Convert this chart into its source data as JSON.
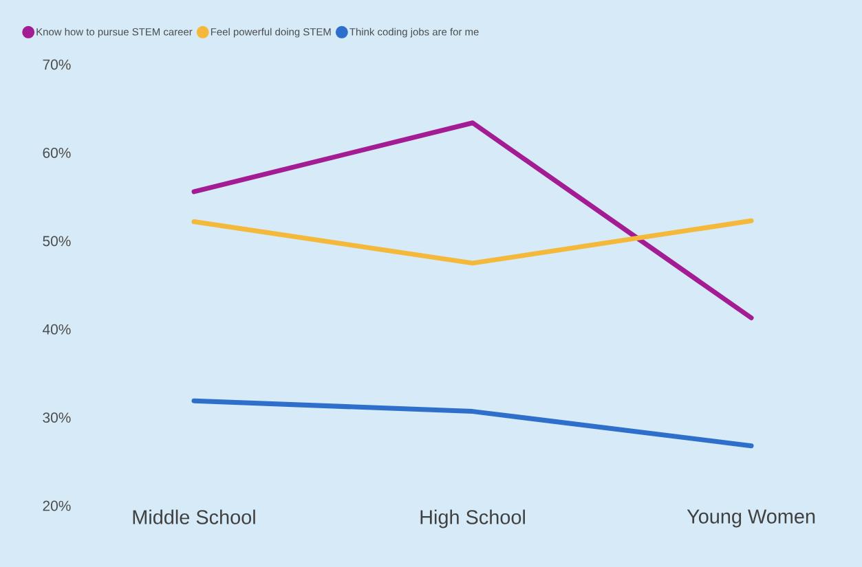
{
  "chart_data": {
    "type": "line",
    "categories": [
      "Middle School",
      "High School",
      "Young Women"
    ],
    "series": [
      {
        "name": "Know how to pursue STEM career",
        "color": "#a41c94",
        "values": [
          55.6,
          63.4,
          41.3
        ]
      },
      {
        "name": "Feel powerful doing STEM",
        "color": "#f4b93a",
        "values": [
          52.2,
          47.5,
          52.3
        ]
      },
      {
        "name": "Think coding jobs are for me",
        "color": "#2f6fcc",
        "values": [
          31.9,
          30.7,
          26.8
        ]
      }
    ],
    "ylim": [
      20,
      70
    ],
    "yticks": [
      {
        "value": 20,
        "label": "20%"
      },
      {
        "value": 30,
        "label": "30%"
      },
      {
        "value": 40,
        "label": "40%"
      },
      {
        "value": 50,
        "label": "50%"
      },
      {
        "value": 60,
        "label": "60%"
      },
      {
        "value": 70,
        "label": "70%"
      }
    ],
    "legend": "top left",
    "marker": "none",
    "line_style": "solid"
  }
}
